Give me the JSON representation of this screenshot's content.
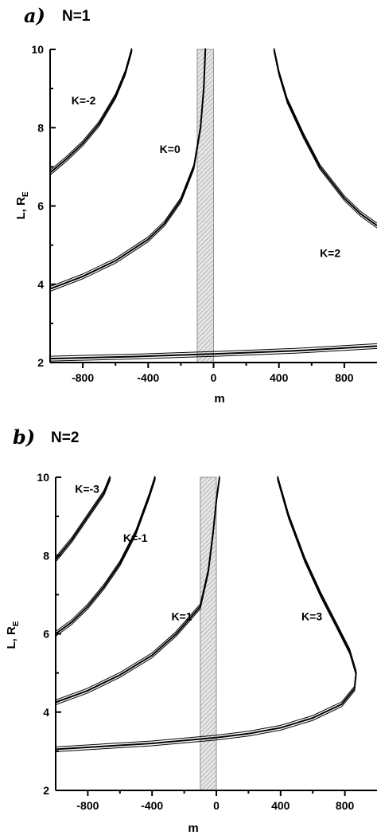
{
  "chart_data": [
    {
      "type": "line",
      "panel_label": "a)",
      "panel_title": "N=1",
      "xlabel": "m",
      "ylabel_main": "L, R",
      "ylabel_sub": "E",
      "xlim": [
        -1000,
        1000
      ],
      "ylim": [
        2,
        10
      ],
      "xticks": [
        -800,
        -400,
        0,
        400,
        800
      ],
      "yticks": [
        2,
        4,
        6,
        8,
        10
      ],
      "shaded_band": [
        -100,
        0
      ],
      "series": [
        {
          "label": "K=-2",
          "points": [
            [
              -1000,
              6.85
            ],
            [
              -900,
              7.2
            ],
            [
              -800,
              7.6
            ],
            [
              -700,
              8.1
            ],
            [
              -600,
              8.8
            ],
            [
              -540,
              9.4
            ],
            [
              -500,
              10.0
            ]
          ]
        },
        {
          "label": "K=0",
          "points": [
            [
              -1000,
              3.88
            ],
            [
              -800,
              4.2
            ],
            [
              -600,
              4.6
            ],
            [
              -400,
              5.15
            ],
            [
              -300,
              5.55
            ],
            [
              -200,
              6.15
            ],
            [
              -120,
              7.0
            ],
            [
              -80,
              8.0
            ],
            [
              -60,
              9.0
            ],
            [
              -50,
              10.0
            ]
          ]
        },
        {
          "label": "K=2",
          "points": [
            [
              370,
              10.0
            ],
            [
              400,
              9.4
            ],
            [
              450,
              8.7
            ],
            [
              550,
              7.8
            ],
            [
              650,
              7.0
            ],
            [
              800,
              6.2
            ],
            [
              900,
              5.8
            ],
            [
              1000,
              5.5
            ]
          ]
        },
        {
          "label": "",
          "points": [
            [
              -1000,
              2.1
            ],
            [
              -500,
              2.15
            ],
            [
              0,
              2.22
            ],
            [
              500,
              2.3
            ],
            [
              1000,
              2.42
            ]
          ]
        }
      ],
      "curve_labels": [
        {
          "text": "K=-2",
          "x": -870,
          "y": 8.6
        },
        {
          "text": "K=0",
          "x": -330,
          "y": 7.35
        },
        {
          "text": "K=2",
          "x": 650,
          "y": 4.7
        }
      ]
    },
    {
      "type": "line",
      "panel_label": "b)",
      "panel_title": "N=2",
      "xlabel": "m",
      "ylabel_main": "L, R",
      "ylabel_sub": "E",
      "xlim": [
        -1000,
        1000
      ],
      "ylim": [
        2,
        10
      ],
      "xticks": [
        -800,
        -400,
        0,
        400,
        800
      ],
      "yticks": [
        2,
        4,
        6,
        8,
        10
      ],
      "shaded_band": [
        -100,
        0
      ],
      "series": [
        {
          "label": "K=-3",
          "points": [
            [
              -1000,
              7.9
            ],
            [
              -900,
              8.4
            ],
            [
              -800,
              9.0
            ],
            [
              -700,
              9.6
            ],
            [
              -660,
              10.0
            ]
          ]
        },
        {
          "label": "K=-1",
          "points": [
            [
              -1000,
              6.0
            ],
            [
              -900,
              6.3
            ],
            [
              -800,
              6.7
            ],
            [
              -700,
              7.2
            ],
            [
              -600,
              7.8
            ],
            [
              -500,
              8.6
            ],
            [
              -420,
              9.5
            ],
            [
              -380,
              10.0
            ]
          ]
        },
        {
          "label": "K=1",
          "points": [
            [
              -1000,
              4.25
            ],
            [
              -800,
              4.55
            ],
            [
              -600,
              4.95
            ],
            [
              -400,
              5.45
            ],
            [
              -250,
              6.0
            ],
            [
              -100,
              6.7
            ],
            [
              -50,
              7.6
            ],
            [
              -20,
              8.6
            ],
            [
              0,
              9.4
            ],
            [
              20,
              10.0
            ]
          ]
        },
        {
          "label": "K=3",
          "points": [
            [
              380,
              10.0
            ],
            [
              450,
              9.0
            ],
            [
              550,
              7.9
            ],
            [
              650,
              7.0
            ],
            [
              750,
              6.2
            ],
            [
              830,
              5.55
            ],
            [
              870,
              5.0
            ],
            [
              860,
              4.6
            ],
            [
              780,
              4.2
            ],
            [
              600,
              3.85
            ],
            [
              400,
              3.6
            ],
            [
              200,
              3.45
            ],
            [
              0,
              3.35
            ],
            [
              -400,
              3.2
            ],
            [
              -1000,
              3.05
            ]
          ]
        }
      ],
      "curve_labels": [
        {
          "text": "K=-3",
          "x": -880,
          "y": 9.6
        },
        {
          "text": "K=-1",
          "x": -580,
          "y": 8.35
        },
        {
          "text": "K=1",
          "x": -280,
          "y": 6.35
        },
        {
          "text": "K=3",
          "x": 530,
          "y": 6.35
        }
      ]
    }
  ]
}
